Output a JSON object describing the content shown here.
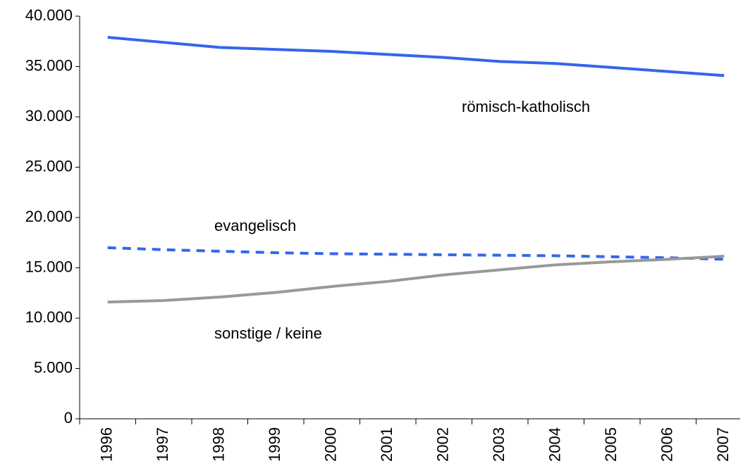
{
  "chart_data": {
    "type": "line",
    "categories": [
      "1996",
      "1997",
      "1998",
      "1999",
      "2000",
      "2001",
      "2002",
      "2003",
      "2004",
      "2005",
      "2006",
      "2007"
    ],
    "series": [
      {
        "name": "römisch-katholisch",
        "color": "#3366ee",
        "style": "solid",
        "values": [
          37900,
          37400,
          36900,
          36700,
          36500,
          36200,
          35900,
          35500,
          35300,
          34900,
          34500,
          34100
        ]
      },
      {
        "name": "evangelisch",
        "color": "#3366ee",
        "style": "dashed",
        "values": [
          17000,
          16800,
          16650,
          16500,
          16400,
          16350,
          16300,
          16250,
          16200,
          16100,
          16000,
          15850
        ]
      },
      {
        "name": "sonstige / keine",
        "color": "#999999",
        "style": "solid",
        "values": [
          11600,
          11750,
          12100,
          12550,
          13150,
          13650,
          14300,
          14800,
          15300,
          15600,
          15850,
          16150
        ]
      }
    ],
    "ylim": [
      0,
      40000
    ],
    "yticks": [
      {
        "value": 0,
        "label": "0"
      },
      {
        "value": 5000,
        "label": "5.000"
      },
      {
        "value": 10000,
        "label": "10.000"
      },
      {
        "value": 15000,
        "label": "15.000"
      },
      {
        "value": 20000,
        "label": "20.000"
      },
      {
        "value": 25000,
        "label": "25.000"
      },
      {
        "value": 30000,
        "label": "30.000"
      },
      {
        "value": 35000,
        "label": "35.000"
      },
      {
        "value": 40000,
        "label": "40.000"
      }
    ],
    "grid": false
  }
}
